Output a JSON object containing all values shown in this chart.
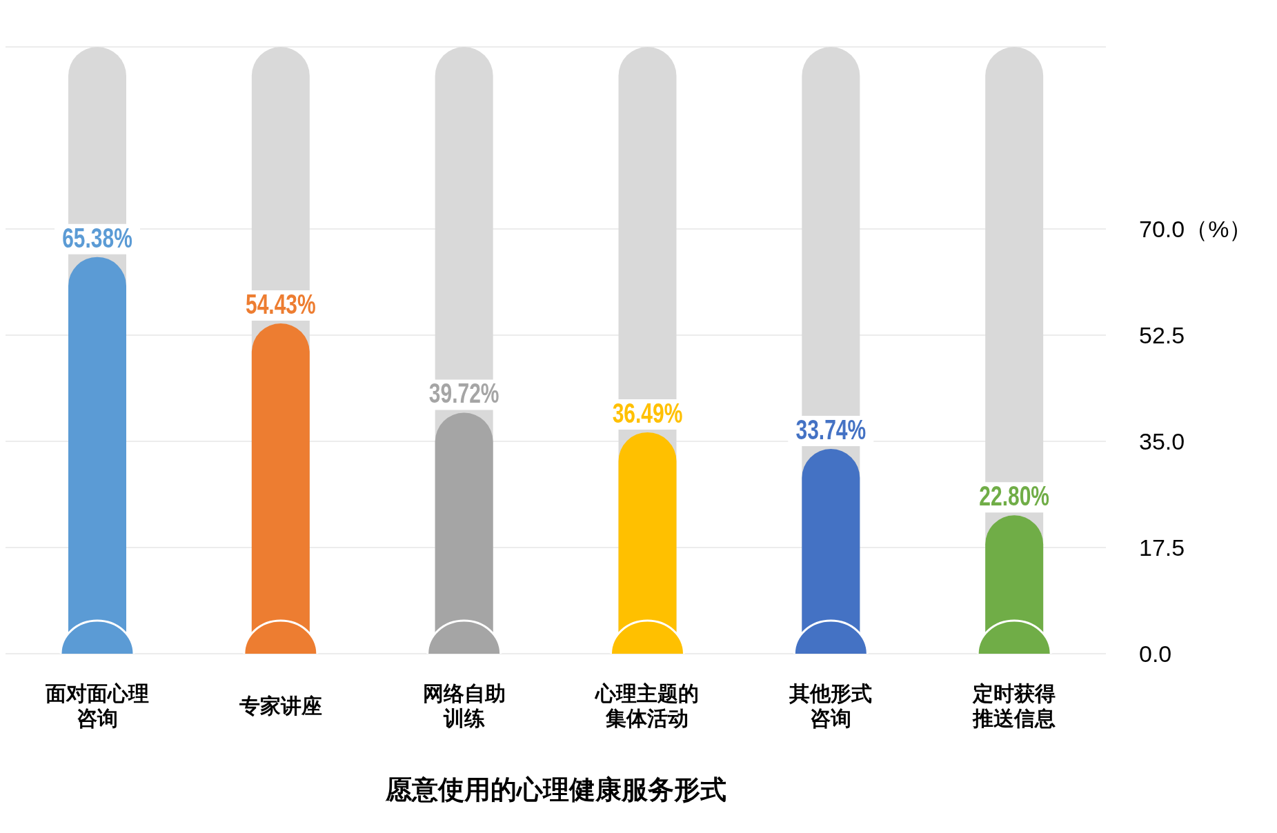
{
  "chart_data": {
    "type": "bar",
    "xlabel": "愿意使用的心理健康服务形式",
    "categories": [
      "面对面心理咨询",
      "专家讲座",
      "网络自助训练",
      "心理主题的集体活动",
      "其他形式咨询",
      "定时获得推送信息"
    ],
    "series": [
      {
        "colors": [
          "#5b9bd5",
          "#ed7d31",
          "#a5a5a5",
          "#ffc000",
          "#4472c4",
          "#70ad47"
        ],
        "values": [
          65.38,
          54.43,
          39.72,
          36.49,
          33.74,
          22.8
        ],
        "value_labels": [
          "65.38%",
          "54.43%",
          "39.72%",
          "36.49%",
          "33.74%",
          "22.80%"
        ]
      }
    ],
    "ylim": [
      0,
      100
    ],
    "yticks": [
      {
        "value": 0,
        "label": "0.0"
      },
      {
        "value": 17.5,
        "label": "17.5"
      },
      {
        "value": 35,
        "label": "35.0"
      },
      {
        "value": 52.5,
        "label": "52.5"
      },
      {
        "value": 70,
        "label": "70.0（%）"
      }
    ],
    "grid": "y"
  }
}
